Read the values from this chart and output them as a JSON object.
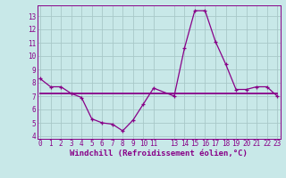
{
  "line1_x": [
    0,
    1,
    2,
    3,
    4,
    5,
    6,
    7,
    8,
    9,
    10,
    11,
    13,
    14,
    15,
    16,
    17,
    18,
    19,
    20,
    21,
    22,
    23
  ],
  "line1_y": [
    8.3,
    7.7,
    7.7,
    7.2,
    6.9,
    5.3,
    5.0,
    4.9,
    4.4,
    5.2,
    6.4,
    7.6,
    7.0,
    10.6,
    13.4,
    13.4,
    11.1,
    9.4,
    7.5,
    7.5,
    7.7,
    7.7,
    7.0
  ],
  "line2_x": [
    0,
    23
  ],
  "line2_y": [
    7.2,
    7.2
  ],
  "line_color": "#880088",
  "bg_color": "#c8e8e8",
  "grid_color": "#a8c8c8",
  "xlabel": "Windchill (Refroidissement éolien,°C)",
  "ylim": [
    3.8,
    13.8
  ],
  "xlim": [
    -0.3,
    23.3
  ],
  "yticks": [
    4,
    5,
    6,
    7,
    8,
    9,
    10,
    11,
    12,
    13
  ],
  "xticks": [
    0,
    1,
    2,
    3,
    4,
    5,
    6,
    7,
    8,
    9,
    10,
    11,
    13,
    14,
    15,
    16,
    17,
    18,
    19,
    20,
    21,
    22,
    23
  ],
  "xtick_labels": [
    "0",
    "1",
    "2",
    "3",
    "4",
    "5",
    "6",
    "7",
    "8",
    "9",
    "10",
    "11",
    "13",
    "14",
    "15",
    "16",
    "17",
    "18",
    "19",
    "20",
    "21",
    "22",
    "23"
  ],
  "tick_fontsize": 5.5,
  "xlabel_fontsize": 6.5,
  "xlabel_fontweight": "bold"
}
